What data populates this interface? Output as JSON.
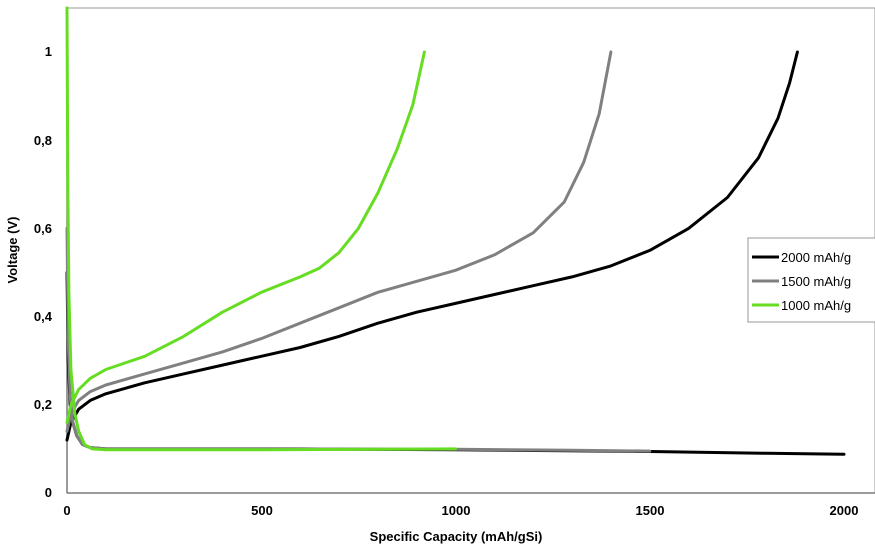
{
  "chart_data": {
    "type": "line",
    "xlabel": "Specific Capacity (mAh/gSi)",
    "ylabel": "Voltage (V)",
    "xlim": [
      0,
      2100
    ],
    "ylim": [
      0,
      1.1
    ],
    "x_ticks": [
      "0",
      "500",
      "1000",
      "1500",
      "2000"
    ],
    "y_ticks": [
      "0",
      "0,2",
      "0,4",
      "0,6",
      "0,8",
      "1"
    ],
    "legend_position": "right",
    "series": [
      {
        "name": "2000 mAh/g",
        "color": "#000000",
        "discharge": [
          [
            0,
            0.5
          ],
          [
            3,
            0.3
          ],
          [
            8,
            0.2
          ],
          [
            15,
            0.16
          ],
          [
            25,
            0.13
          ],
          [
            40,
            0.11
          ],
          [
            60,
            0.103
          ],
          [
            100,
            0.1
          ],
          [
            300,
            0.1
          ],
          [
            600,
            0.1
          ],
          [
            1000,
            0.098
          ],
          [
            1500,
            0.094
          ],
          [
            1800,
            0.09
          ],
          [
            2000,
            0.088
          ]
        ],
        "charge": [
          [
            0,
            0.12
          ],
          [
            10,
            0.16
          ],
          [
            30,
            0.19
          ],
          [
            60,
            0.21
          ],
          [
            100,
            0.225
          ],
          [
            200,
            0.25
          ],
          [
            300,
            0.27
          ],
          [
            400,
            0.29
          ],
          [
            500,
            0.31
          ],
          [
            600,
            0.33
          ],
          [
            700,
            0.355
          ],
          [
            800,
            0.385
          ],
          [
            900,
            0.41
          ],
          [
            1000,
            0.43
          ],
          [
            1100,
            0.45
          ],
          [
            1200,
            0.47
          ],
          [
            1300,
            0.49
          ],
          [
            1400,
            0.515
          ],
          [
            1500,
            0.55
          ],
          [
            1600,
            0.6
          ],
          [
            1700,
            0.67
          ],
          [
            1780,
            0.76
          ],
          [
            1830,
            0.85
          ],
          [
            1860,
            0.93
          ],
          [
            1880,
            1.0
          ]
        ]
      },
      {
        "name": "1500 mAh/g",
        "color": "#808080",
        "discharge": [
          [
            0,
            0.6
          ],
          [
            3,
            0.35
          ],
          [
            8,
            0.22
          ],
          [
            15,
            0.16
          ],
          [
            25,
            0.13
          ],
          [
            40,
            0.11
          ],
          [
            60,
            0.103
          ],
          [
            100,
            0.1
          ],
          [
            500,
            0.1
          ],
          [
            1000,
            0.099
          ],
          [
            1300,
            0.097
          ],
          [
            1500,
            0.095
          ]
        ],
        "charge": [
          [
            0,
            0.14
          ],
          [
            10,
            0.18
          ],
          [
            30,
            0.21
          ],
          [
            60,
            0.23
          ],
          [
            100,
            0.245
          ],
          [
            200,
            0.27
          ],
          [
            300,
            0.295
          ],
          [
            400,
            0.32
          ],
          [
            500,
            0.35
          ],
          [
            600,
            0.385
          ],
          [
            700,
            0.42
          ],
          [
            800,
            0.455
          ],
          [
            900,
            0.48
          ],
          [
            1000,
            0.505
          ],
          [
            1100,
            0.54
          ],
          [
            1200,
            0.59
          ],
          [
            1280,
            0.66
          ],
          [
            1330,
            0.75
          ],
          [
            1370,
            0.86
          ],
          [
            1400,
            1.0
          ]
        ]
      },
      {
        "name": "1000 mAh/g",
        "color": "#66dd22",
        "discharge": [
          [
            0,
            1.1
          ],
          [
            2,
            0.7
          ],
          [
            5,
            0.45
          ],
          [
            10,
            0.28
          ],
          [
            20,
            0.18
          ],
          [
            30,
            0.14
          ],
          [
            45,
            0.11
          ],
          [
            65,
            0.1
          ],
          [
            100,
            0.098
          ],
          [
            500,
            0.098
          ],
          [
            800,
            0.099
          ],
          [
            1000,
            0.1
          ]
        ],
        "charge": [
          [
            0,
            0.16
          ],
          [
            10,
            0.2
          ],
          [
            30,
            0.235
          ],
          [
            60,
            0.26
          ],
          [
            100,
            0.28
          ],
          [
            200,
            0.31
          ],
          [
            300,
            0.355
          ],
          [
            400,
            0.41
          ],
          [
            500,
            0.455
          ],
          [
            600,
            0.49
          ],
          [
            650,
            0.51
          ],
          [
            700,
            0.545
          ],
          [
            750,
            0.6
          ],
          [
            800,
            0.68
          ],
          [
            850,
            0.78
          ],
          [
            890,
            0.88
          ],
          [
            920,
            1.0
          ]
        ]
      }
    ]
  }
}
